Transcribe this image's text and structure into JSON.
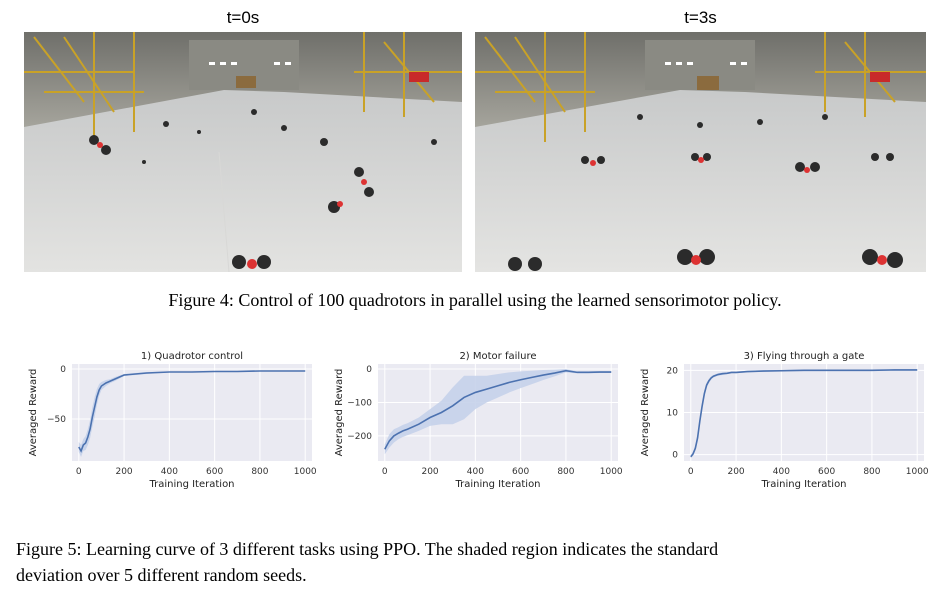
{
  "figure4": {
    "panels": [
      {
        "title": "t=0s"
      },
      {
        "title": "t=3s"
      }
    ],
    "caption": "Figure 4: Control of 100 quadrotors in parallel using the learned sensorimotor policy."
  },
  "figure5": {
    "caption_line1": "Figure 5: Learning curve of 3 different tasks using PPO. The shaded region indicates the standard",
    "caption_line2": "deviation over 5 different random seeds."
  },
  "colors": {
    "line": "#4c72b0",
    "band": "#c5d2ea",
    "plot_bg": "#eaeaf2",
    "grid": "#ffffff"
  },
  "chart_data": [
    {
      "type": "line",
      "title": "1) Quadrotor control",
      "xlabel": "Training Iteration",
      "ylabel": "Averaged Reward",
      "xlim": [
        -30,
        1030
      ],
      "ylim": [
        -92,
        5
      ],
      "xticks": [
        0,
        200,
        400,
        600,
        800,
        1000
      ],
      "yticks": [
        0,
        -50
      ],
      "grid": true,
      "series": [
        {
          "x": [
            0,
            10,
            20,
            30,
            40,
            50,
            60,
            70,
            80,
            90,
            100,
            120,
            140,
            160,
            180,
            200,
            250,
            300,
            400,
            500,
            600,
            700,
            800,
            900,
            1000
          ],
          "y": [
            -78,
            -82,
            -76,
            -74,
            -68,
            -60,
            -48,
            -38,
            -28,
            -21,
            -17,
            -14,
            -12,
            -10,
            -8,
            -6,
            -5,
            -4,
            -3,
            -3,
            -2.5,
            -2.5,
            -2,
            -2,
            -2
          ],
          "std": [
            5,
            6,
            6,
            7,
            8,
            9,
            10,
            10,
            8,
            6,
            4,
            3,
            2,
            2,
            1.5,
            1,
            1,
            1,
            0.5,
            0.5,
            0.5,
            0.5,
            0.5,
            0.5,
            0.5
          ]
        }
      ]
    },
    {
      "type": "line",
      "title": "2) Motor failure",
      "xlabel": "Training Iteration",
      "ylabel": "Averaged Reward",
      "xlim": [
        -30,
        1030
      ],
      "ylim": [
        -275,
        15
      ],
      "xticks": [
        0,
        200,
        400,
        600,
        800,
        1000
      ],
      "yticks": [
        0,
        -100,
        -200
      ],
      "grid": true,
      "series": [
        {
          "x": [
            0,
            20,
            40,
            60,
            80,
            100,
            150,
            200,
            250,
            300,
            350,
            400,
            450,
            500,
            550,
            600,
            650,
            700,
            750,
            800,
            850,
            900,
            950,
            1000
          ],
          "y": [
            -240,
            -215,
            -200,
            -192,
            -185,
            -180,
            -165,
            -145,
            -130,
            -110,
            -85,
            -70,
            -60,
            -50,
            -40,
            -32,
            -25,
            -18,
            -12,
            -5,
            -10,
            -10,
            -9,
            -9
          ],
          "std": [
            15,
            20,
            20,
            18,
            18,
            18,
            20,
            25,
            35,
            55,
            65,
            50,
            40,
            35,
            30,
            25,
            20,
            15,
            10,
            5,
            3,
            3,
            3,
            3
          ]
        }
      ]
    },
    {
      "type": "line",
      "title": "3) Flying through a gate",
      "xlabel": "Training Iteration",
      "ylabel": "Averaged Reward",
      "xlim": [
        -30,
        1030
      ],
      "ylim": [
        -1.5,
        21.5
      ],
      "xticks": [
        0,
        200,
        400,
        600,
        800,
        1000
      ],
      "yticks": [
        0,
        10,
        20
      ],
      "grid": true,
      "series": [
        {
          "x": [
            0,
            10,
            20,
            30,
            40,
            50,
            60,
            70,
            80,
            90,
            100,
            120,
            140,
            160,
            180,
            200,
            250,
            300,
            400,
            500,
            600,
            700,
            800,
            900,
            1000
          ],
          "y": [
            -0.5,
            0.2,
            1.5,
            4,
            8,
            11.5,
            14.5,
            16.5,
            17.5,
            18.2,
            18.6,
            19,
            19.2,
            19.3,
            19.5,
            19.5,
            19.7,
            19.8,
            19.9,
            20,
            20,
            20,
            20,
            20.1,
            20.1
          ],
          "std": [
            0.3,
            0.5,
            0.6,
            0.8,
            1,
            1,
            0.8,
            0.6,
            0.5,
            0.4,
            0.3,
            0.3,
            0.3,
            0.2,
            0.2,
            0.2,
            0.2,
            0.2,
            0.2,
            0.2,
            0.2,
            0.2,
            0.2,
            0.2,
            0.2
          ]
        }
      ]
    }
  ]
}
